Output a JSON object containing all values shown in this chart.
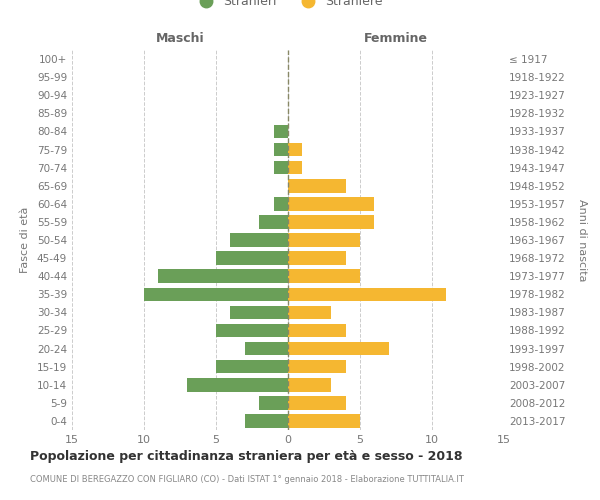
{
  "age_groups": [
    "0-4",
    "5-9",
    "10-14",
    "15-19",
    "20-24",
    "25-29",
    "30-34",
    "35-39",
    "40-44",
    "45-49",
    "50-54",
    "55-59",
    "60-64",
    "65-69",
    "70-74",
    "75-79",
    "80-84",
    "85-89",
    "90-94",
    "95-99",
    "100+"
  ],
  "birth_years": [
    "2013-2017",
    "2008-2012",
    "2003-2007",
    "1998-2002",
    "1993-1997",
    "1988-1992",
    "1983-1987",
    "1978-1982",
    "1973-1977",
    "1968-1972",
    "1963-1967",
    "1958-1962",
    "1953-1957",
    "1948-1952",
    "1943-1947",
    "1938-1942",
    "1933-1937",
    "1928-1932",
    "1923-1927",
    "1918-1922",
    "≤ 1917"
  ],
  "males": [
    3,
    2,
    7,
    5,
    3,
    5,
    4,
    10,
    9,
    5,
    4,
    2,
    1,
    0,
    1,
    1,
    1,
    0,
    0,
    0,
    0
  ],
  "females": [
    5,
    4,
    3,
    4,
    7,
    4,
    3,
    11,
    5,
    4,
    5,
    6,
    6,
    4,
    1,
    1,
    0,
    0,
    0,
    0,
    0
  ],
  "male_color": "#6a9f58",
  "female_color": "#f5b731",
  "background_color": "#ffffff",
  "grid_color": "#cccccc",
  "title": "Popolazione per cittadinanza straniera per età e sesso - 2018",
  "subtitle": "COMUNE DI BEREGAZZO CON FIGLIARO (CO) - Dati ISTAT 1° gennaio 2018 - Elaborazione TUTTITALIA.IT",
  "ylabel_left": "Fasce di età",
  "ylabel_right": "Anni di nascita",
  "xlabel_left": "Maschi",
  "xlabel_right": "Femmine",
  "legend_male": "Stranieri",
  "legend_female": "Straniere",
  "xlim": 15,
  "bar_height": 0.75
}
